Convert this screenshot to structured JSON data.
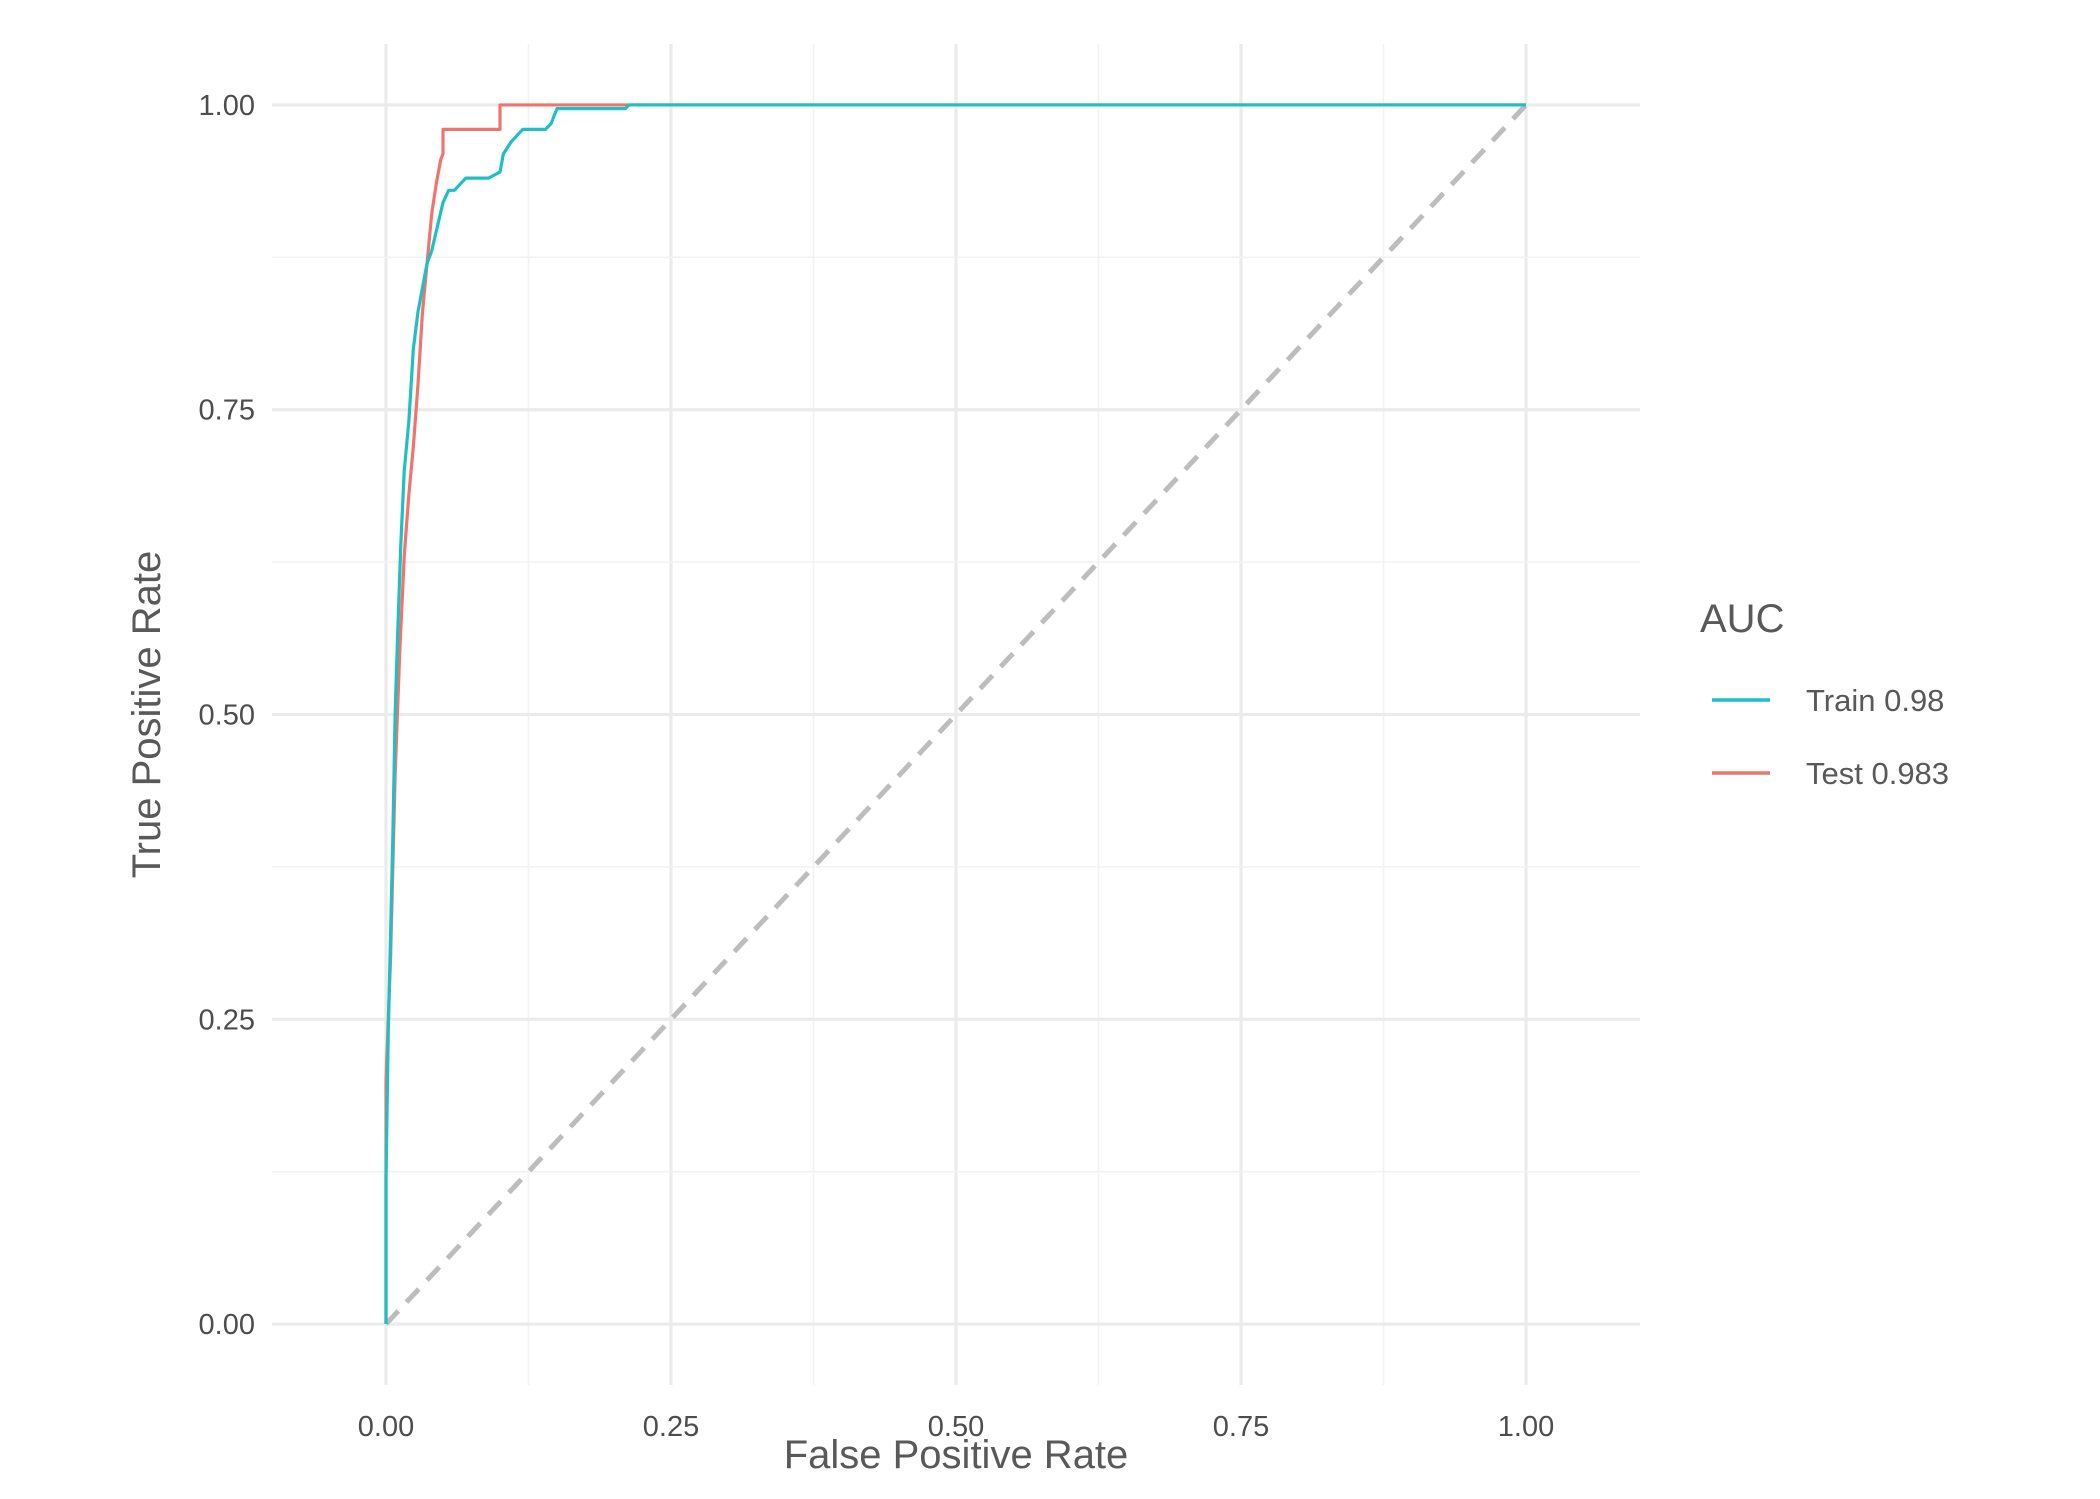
{
  "chart_data": {
    "type": "line",
    "title": "",
    "xlabel": "False Positive Rate",
    "ylabel": "True Positive Rate",
    "xlim": [
      -0.1,
      1.1
    ],
    "ylim": [
      -0.05,
      1.05
    ],
    "x_ticks": [
      0.0,
      0.25,
      0.5,
      0.75,
      1.0
    ],
    "y_ticks": [
      0.0,
      0.25,
      0.5,
      0.75,
      1.0
    ],
    "x_tick_labels": [
      "0.00",
      "0.25",
      "0.50",
      "0.75",
      "1.00"
    ],
    "y_tick_labels": [
      "0.00",
      "0.25",
      "0.50",
      "0.75",
      "1.00"
    ],
    "grid": true,
    "legend": {
      "title": "AUC",
      "position": "right"
    },
    "reference_line": {
      "style": "dashed",
      "color": "#bdbdbd",
      "points": [
        [
          0,
          0
        ],
        [
          1,
          1
        ]
      ]
    },
    "series": [
      {
        "name": "Train 0.98",
        "color": "#1fbfc4",
        "x": [
          0.0,
          0.0,
          0.002,
          0.004,
          0.006,
          0.008,
          0.01,
          0.013,
          0.016,
          0.02,
          0.024,
          0.028,
          0.032,
          0.036,
          0.04,
          0.045,
          0.05,
          0.055,
          0.06,
          0.065,
          0.07,
          0.08,
          0.09,
          0.1,
          0.103,
          0.11,
          0.115,
          0.12,
          0.13,
          0.14,
          0.145,
          0.147,
          0.15,
          0.2,
          0.21,
          0.213,
          0.25,
          0.5,
          0.75,
          1.0
        ],
        "y": [
          0.0,
          0.12,
          0.24,
          0.32,
          0.4,
          0.5,
          0.56,
          0.64,
          0.7,
          0.74,
          0.8,
          0.83,
          0.85,
          0.87,
          0.88,
          0.9,
          0.92,
          0.93,
          0.93,
          0.935,
          0.94,
          0.94,
          0.94,
          0.945,
          0.96,
          0.97,
          0.975,
          0.98,
          0.98,
          0.98,
          0.985,
          0.99,
          0.997,
          0.997,
          0.997,
          1.0,
          1.0,
          1.0,
          1.0,
          1.0
        ]
      },
      {
        "name": "Test 0.983",
        "color": "#f0746e",
        "x": [
          0.0,
          0.0,
          0.004,
          0.008,
          0.012,
          0.016,
          0.02,
          0.024,
          0.028,
          0.032,
          0.036,
          0.04,
          0.044,
          0.048,
          0.05,
          0.05,
          0.1,
          0.1,
          0.15,
          0.21,
          0.25,
          0.5,
          0.75,
          1.0
        ],
        "y": [
          0.0,
          0.2,
          0.3,
          0.45,
          0.55,
          0.63,
          0.68,
          0.72,
          0.77,
          0.83,
          0.87,
          0.91,
          0.935,
          0.955,
          0.96,
          0.98,
          0.98,
          1.0,
          1.0,
          1.0,
          1.0,
          1.0,
          1.0,
          1.0
        ]
      }
    ]
  }
}
